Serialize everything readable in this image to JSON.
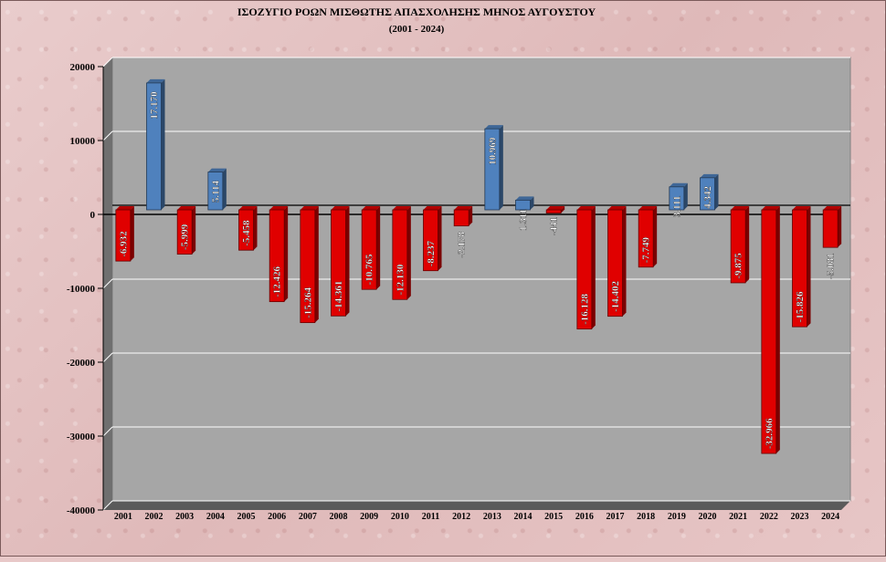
{
  "chart_data": {
    "type": "bar",
    "title": "ΙΣΟΖΥΓΙΟ ΡΟΩΝ ΜΙΣΘΩΤΗΣ ΑΠΑΣΧΟΛΗΣΗΣ ΜΗΝΟΣ ΑΥΓΟΥΣΤΟΥ",
    "subtitle": "(2001 - 2024)",
    "ylim": [
      -40000,
      20000
    ],
    "yticks": [
      "20000",
      "10000",
      "0",
      "-10000",
      "-20000",
      "-30000",
      "-40000"
    ],
    "ytick_values": [
      20000,
      10000,
      0,
      -10000,
      -20000,
      -30000,
      -40000
    ],
    "categories": [
      "2001",
      "2002",
      "2003",
      "2004",
      "2005",
      "2006",
      "2007",
      "2008",
      "2009",
      "2010",
      "2011",
      "2012",
      "2013",
      "2014",
      "2015",
      "2016",
      "2017",
      "2018",
      "2019",
      "2020",
      "2021",
      "2022",
      "2023",
      "2024"
    ],
    "values": [
      -6932,
      17170,
      -5999,
      5114,
      -5458,
      -12426,
      -15264,
      -14361,
      -10765,
      -12130,
      -8237,
      -2178,
      10969,
      1311,
      -441,
      -16128,
      -14402,
      -7749,
      3111,
      4342,
      -9875,
      -32966,
      -15826,
      -5081
    ],
    "labels": [
      "-6.932",
      "17.170",
      "-5.999",
      "5.114",
      "-5.458",
      "-12.426",
      "-15.264",
      "-14.361",
      "-10.765",
      "-12.130",
      "-8.237",
      "-2.178",
      "10.969",
      "1.311",
      "-441",
      "-16.128",
      "-14.402",
      "-7.749",
      "3.111",
      "4.342",
      "-9.875",
      "-32.966",
      "-15.826",
      "-5.081"
    ],
    "colors": {
      "positive": "#4f81bd",
      "negative": "#e00000",
      "plot_bg": "#a6a6a6",
      "side_wall": "#6f6f6f",
      "floor": "#5a5a5a"
    },
    "grid": true
  }
}
